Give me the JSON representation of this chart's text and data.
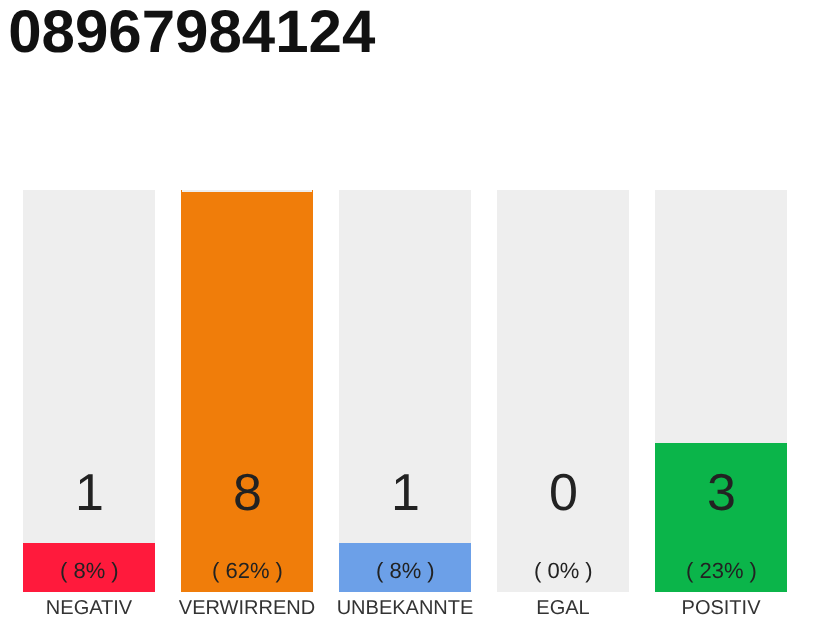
{
  "chart_data": {
    "type": "bar",
    "title": "08967984124",
    "categories": [
      "NEGATIV",
      "VERWIRREND",
      "UNBEKANNTE",
      "EGAL",
      "POSITIV"
    ],
    "stacked": true,
    "series": [
      {
        "colors": [
          "#ff1a3c",
          "#f07d0a",
          "#6ca0e8",
          "#b0b0b0",
          "#0bb54a"
        ],
        "values": [
          1,
          8,
          1,
          0,
          3
        ],
        "value_labels": [
          "1\n( 8% )",
          "8\n( 62% )",
          "1\n( 8% )",
          "0\n( 0% )",
          "3\n( 23% )"
        ]
      },
      {
        "color": "#eeeeee",
        "values": [
          7,
          0,
          7,
          8,
          5
        ]
      }
    ]
  }
}
